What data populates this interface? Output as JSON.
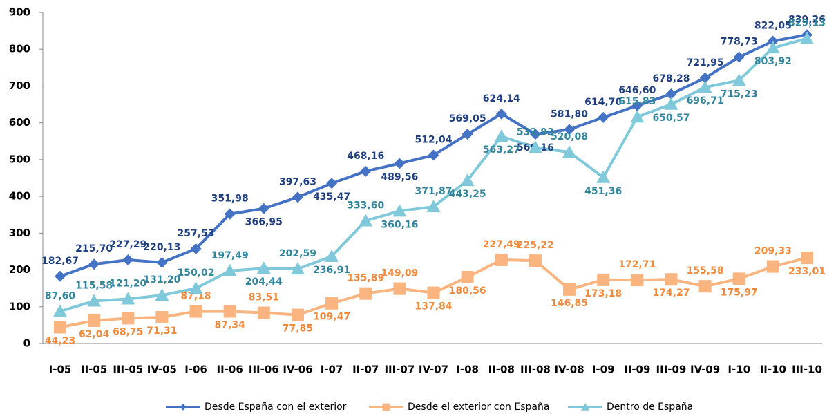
{
  "chart_data": {
    "type": "line",
    "categories": [
      "I-05",
      "II-05",
      "III-05",
      "IV-05",
      "I-06",
      "II-06",
      "III-06",
      "IV-06",
      "I-07",
      "II-07",
      "III-07",
      "IV-07",
      "I-08",
      "II-08",
      "III-08",
      "IV-08",
      "I-09",
      "II-09",
      "III-09",
      "IV-09",
      "I-10",
      "II-10",
      "III-10"
    ],
    "ylim": [
      0,
      900
    ],
    "yticks": [
      0,
      100,
      200,
      300,
      400,
      500,
      600,
      700,
      800,
      900
    ],
    "grid": false,
    "legend": "bottom",
    "series": [
      {
        "name": "Desde España con el exterior",
        "color": "#4472c4",
        "marker": "diamond",
        "values": [
          182.67,
          215.7,
          227.29,
          220.13,
          257.53,
          351.98,
          366.95,
          397.63,
          435.47,
          468.16,
          489.56,
          512.04,
          569.05,
          624.14,
          569.16,
          581.8,
          614.7,
          646.6,
          678.28,
          721.95,
          778.73,
          822.05,
          839.26
        ],
        "value_labels": [
          "182,67",
          "215,70",
          "227,29",
          "220,13",
          "257,53",
          "351,98",
          "366,95",
          "397,63",
          "435,47",
          "468,16",
          "489,56",
          "512,04",
          "569,05",
          "624,14",
          "569,16",
          "581,80",
          "614,70",
          "646,60",
          "678,28",
          "721,95",
          "778,73",
          "822,05",
          "839,26"
        ]
      },
      {
        "name": "Desde el exterior con España",
        "color": "#f9b47f",
        "marker": "square",
        "values": [
          44.23,
          62.04,
          68.75,
          71.31,
          87.18,
          87.34,
          83.51,
          77.85,
          109.47,
          135.89,
          149.09,
          137.84,
          180.56,
          227.49,
          225.22,
          146.85,
          173.18,
          172.71,
          174.27,
          155.58,
          175.97,
          209.33,
          233.01
        ],
        "value_labels": [
          "44,23",
          "62,04",
          "68,75",
          "71,31",
          "87,18",
          "87,34",
          "83,51",
          "77,85",
          "109,47",
          "135,89",
          "149,09",
          "137,84",
          "180,56",
          "227,49",
          "225,22",
          "146,85",
          "173,18",
          "172,71",
          "174,27",
          "155,58",
          "175,97",
          "209,33",
          "233,01"
        ]
      },
      {
        "name": "Dentro de España",
        "color": "#7fc9da",
        "marker": "triangle",
        "values": [
          87.6,
          115.58,
          121.2,
          131.2,
          150.02,
          197.49,
          204.44,
          202.59,
          236.91,
          333.6,
          360.16,
          371.87,
          443.25,
          563.27,
          532.93,
          520.08,
          451.36,
          615.83,
          650.57,
          696.71,
          715.23,
          803.92,
          829.13
        ],
        "value_labels": [
          "87,60",
          "115,58",
          "121,20",
          "131,20",
          "150,02",
          "197,49",
          "204,44",
          "202,59",
          "236,91",
          "333,60",
          "360,16",
          "371,87",
          "443,25",
          "563,27",
          "532,93",
          "520,08",
          "451,36",
          "615,83",
          "650,57",
          "696,71",
          "715,23",
          "803,92",
          "829,13"
        ]
      }
    ]
  }
}
